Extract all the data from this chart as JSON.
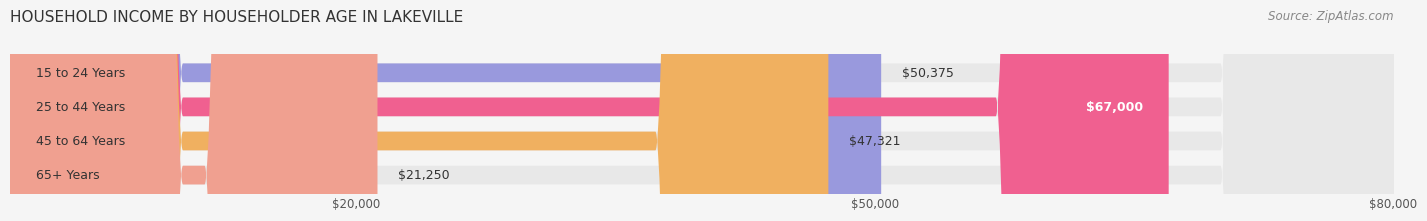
{
  "title": "HOUSEHOLD INCOME BY HOUSEHOLDER AGE IN LAKEVILLE",
  "source": "Source: ZipAtlas.com",
  "categories": [
    "15 to 24 Years",
    "25 to 44 Years",
    "45 to 64 Years",
    "65+ Years"
  ],
  "values": [
    50375,
    67000,
    47321,
    21250
  ],
  "bar_colors": [
    "#9999dd",
    "#f06090",
    "#f0b060",
    "#f0a090"
  ],
  "bar_bg_color": "#e8e8e8",
  "value_labels": [
    "$50,375",
    "$67,000",
    "$47,321",
    "$21,250"
  ],
  "value_label_inside": [
    false,
    true,
    false,
    false
  ],
  "xlim": [
    0,
    80000
  ],
  "xticks": [
    20000,
    50000,
    80000
  ],
  "xtick_labels": [
    "$20,000",
    "$50,000",
    "$80,000"
  ],
  "background_color": "#f5f5f5",
  "bar_height": 0.55,
  "title_fontsize": 11,
  "label_fontsize": 9,
  "tick_fontsize": 8.5,
  "source_fontsize": 8.5
}
